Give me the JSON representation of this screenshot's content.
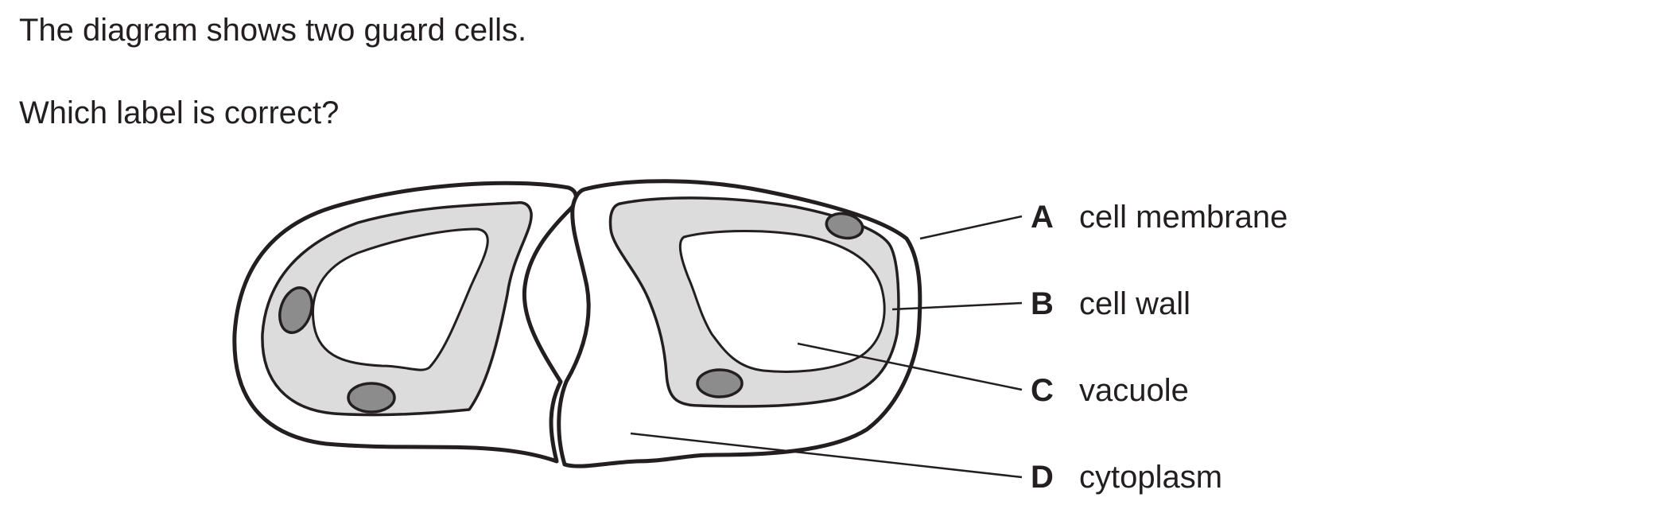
{
  "question": {
    "intro": "The diagram shows two guard cells.",
    "prompt": "Which label is correct?"
  },
  "diagram": {
    "labels": [
      {
        "letter": "A",
        "text": "cell membrane"
      },
      {
        "letter": "B",
        "text": "cell wall"
      },
      {
        "letter": "C",
        "text": "vacuole"
      },
      {
        "letter": "D",
        "text": "cytoplasm"
      }
    ],
    "colors": {
      "outline": "#231f20",
      "cytoplasm_fill": "#dcdcdc",
      "nucleus_fill": "#8c8c8c",
      "vacuole_fill": "#ffffff"
    }
  }
}
